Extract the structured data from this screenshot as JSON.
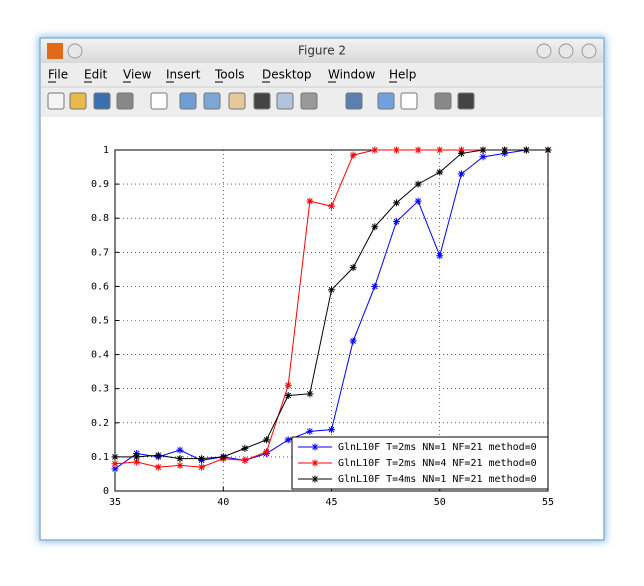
{
  "window": {
    "title": "Figure 2"
  },
  "menu": [
    "File",
    "Edit",
    "View",
    "Insert",
    "Tools",
    "Desktop",
    "Window",
    "Help"
  ],
  "chart_data": {
    "type": "line",
    "x": [
      35,
      36,
      37,
      38,
      39,
      40,
      41,
      42,
      43,
      44,
      45,
      46,
      47,
      48,
      49,
      50,
      51,
      52,
      53,
      54,
      55
    ],
    "series": [
      {
        "name": "GlnL10F T=2ms NN=1 NF=21 method=0",
        "color": "#0000ff",
        "values": [
          0.065,
          0.11,
          0.1,
          0.12,
          0.09,
          0.1,
          0.09,
          0.11,
          0.15,
          0.175,
          0.18,
          0.44,
          0.6,
          0.79,
          0.85,
          0.69,
          0.93,
          0.98,
          0.99,
          1,
          1
        ]
      },
      {
        "name": "GlnL10F T=2ms NN=4 NF=21 method=0",
        "color": "#ff0000",
        "values": [
          0.08,
          0.085,
          0.07,
          0.075,
          0.07,
          0.095,
          0.09,
          0.115,
          0.31,
          0.85,
          0.835,
          0.985,
          1,
          1,
          1,
          1,
          1,
          1,
          1,
          1,
          1
        ]
      },
      {
        "name": "GlnL10F T=4ms NN=1 NF=21 method=0",
        "color": "#000000",
        "values": [
          0.1,
          0.1,
          0.105,
          0.095,
          0.095,
          0.1,
          0.125,
          0.15,
          0.28,
          0.285,
          0.59,
          0.655,
          0.775,
          0.845,
          0.9,
          0.935,
          0.99,
          1,
          1,
          1,
          1
        ]
      }
    ],
    "xlim": [
      35,
      55
    ],
    "xticks": [
      35,
      40,
      45,
      50,
      55
    ],
    "ylim": [
      0,
      1
    ],
    "yticks": [
      0,
      0.1,
      0.2,
      0.3,
      0.4,
      0.5,
      0.6,
      0.7,
      0.8,
      0.9,
      1
    ],
    "grid": true,
    "legend": "lower right"
  }
}
